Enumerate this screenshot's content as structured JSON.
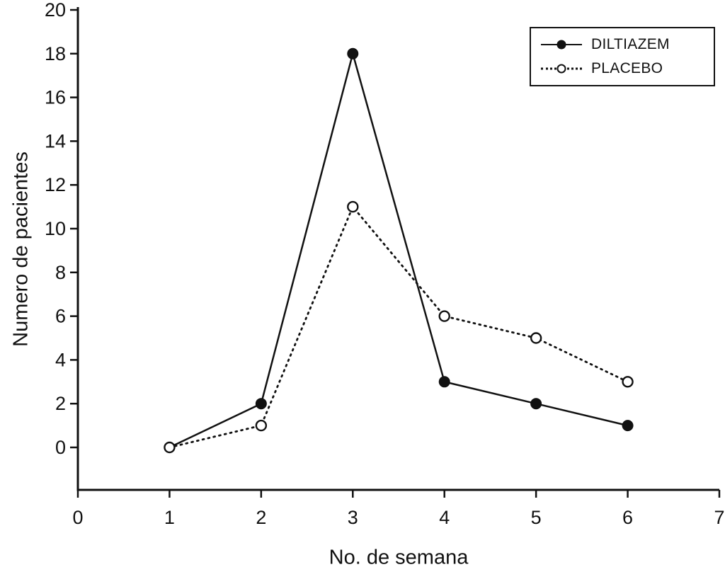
{
  "chart_data": {
    "type": "line",
    "title": "",
    "xlabel": "No. de semana",
    "ylabel": "Numero de pacientes",
    "x": [
      1,
      2,
      3,
      4,
      5,
      6
    ],
    "series": [
      {
        "name": "DILTIAZEM",
        "values": [
          0,
          2,
          18,
          3,
          2,
          1
        ],
        "line": "solid",
        "marker": "filled-circle",
        "color": "#111111"
      },
      {
        "name": "PLACEBO",
        "values": [
          0,
          1,
          11,
          6,
          5,
          3
        ],
        "line": "dotted",
        "marker": "open-circle",
        "color": "#111111"
      }
    ],
    "xlim": [
      0,
      7
    ],
    "ylim": [
      0,
      20
    ],
    "x_ticks": [
      0,
      1,
      2,
      3,
      4,
      5,
      6,
      7
    ],
    "y_ticks": [
      0,
      2,
      4,
      6,
      8,
      10,
      12,
      14,
      16,
      18,
      20
    ],
    "grid": false,
    "legend_position": "top-right",
    "background_color": "#ffffff",
    "axis_color": "#111111"
  }
}
